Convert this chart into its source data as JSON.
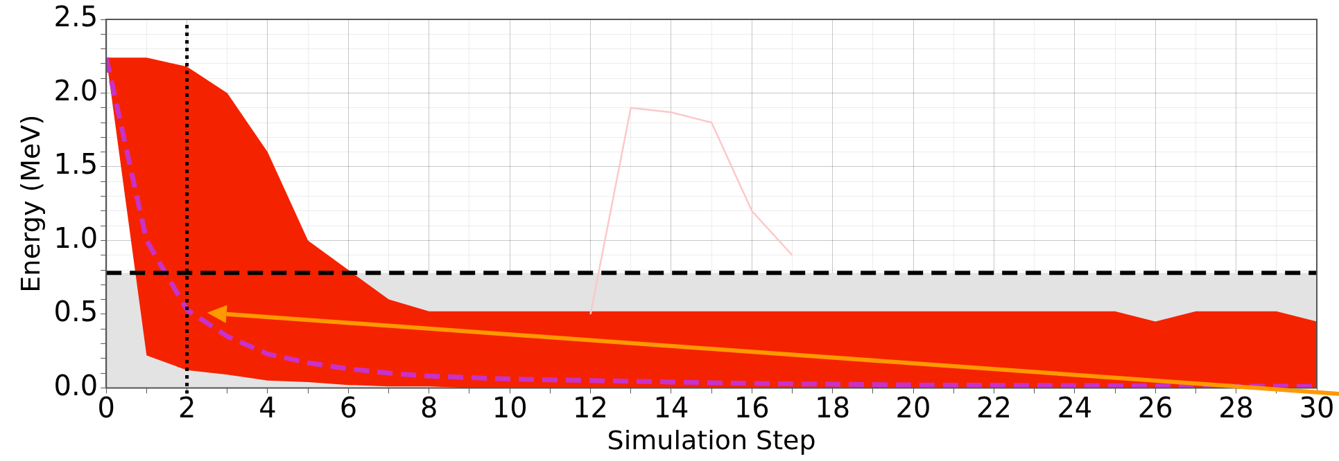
{
  "chart_data": {
    "type": "line",
    "xlabel": "Simulation Step",
    "ylabel": "Energy (MeV)",
    "xlim": [
      0,
      30
    ],
    "ylim": [
      0,
      2.5
    ],
    "xticks": [
      0,
      {
        "value": 1,
        "label": null
      },
      2,
      {
        "value": 3,
        "label": null
      },
      4,
      {
        "value": 5,
        "label": null
      },
      6,
      {
        "value": 7,
        "label": null
      },
      8,
      {
        "value": 9,
        "label": null
      },
      10,
      {
        "value": 11,
        "label": null
      },
      12,
      {
        "value": 13,
        "label": null
      },
      14,
      {
        "value": 15,
        "label": null
      },
      16,
      {
        "value": 17,
        "label": null
      },
      18,
      {
        "value": 19,
        "label": null
      },
      20,
      {
        "value": 21,
        "label": null
      },
      22,
      {
        "value": 23,
        "label": null
      },
      24,
      {
        "value": 25,
        "label": null
      },
      26,
      {
        "value": 27,
        "label": null
      },
      28,
      {
        "value": 29,
        "label": null
      },
      30
    ],
    "yticks": [
      {
        "value": 0,
        "label": "0.0"
      },
      {
        "value": 0.1,
        "label": null
      },
      {
        "value": 0.2,
        "label": null
      },
      {
        "value": 0.3,
        "label": null
      },
      {
        "value": 0.4,
        "label": null
      },
      0.5,
      {
        "value": 0.6,
        "label": null
      },
      {
        "value": 0.7,
        "label": null
      },
      {
        "value": 0.8,
        "label": null
      },
      {
        "value": 0.9,
        "label": null
      },
      {
        "value": 1,
        "label": "1.0"
      },
      {
        "value": 1.1,
        "label": null
      },
      {
        "value": 1.2,
        "label": null
      },
      {
        "value": 1.3,
        "label": null
      },
      {
        "value": 1.4,
        "label": null
      },
      1.5,
      {
        "value": 1.6,
        "label": null
      },
      {
        "value": 1.7,
        "label": null
      },
      {
        "value": 1.8,
        "label": null
      },
      {
        "value": 1.9,
        "label": null
      },
      {
        "value": 2,
        "label": "2.0"
      },
      {
        "value": 2.1,
        "label": null
      },
      {
        "value": 2.2,
        "label": null
      },
      {
        "value": 2.3,
        "label": null
      },
      {
        "value": 2.4,
        "label": null
      },
      2.5
    ],
    "grid": true,
    "legend": false,
    "marker": "none",
    "series": [
      {
        "color": "#fcc8c8",
        "x": [
          12,
          13,
          14,
          15,
          16,
          17
        ],
        "values": [
          0.5,
          1.9,
          1.87,
          1.8,
          1.2,
          0.9
        ]
      },
      {
        "color": "#c832c8",
        "line_style": "dashed",
        "x": [
          0,
          1,
          2,
          3,
          4,
          5,
          6,
          7,
          8,
          9,
          10,
          12,
          14,
          16,
          18,
          20,
          22,
          24,
          25,
          26,
          27,
          28,
          29,
          30
        ],
        "values": [
          2.24,
          1.0,
          0.53,
          0.35,
          0.23,
          0.17,
          0.13,
          0.1,
          0.08,
          0.07,
          0.06,
          0.05,
          0.04,
          0.03,
          0.025,
          0.02,
          0.018,
          0.016,
          0.015,
          0.014,
          0.013,
          0.012,
          0.011,
          0.01
        ],
        "lower": [
          2.24,
          0.22,
          0.12,
          0.09,
          0.05,
          0.04,
          0.02,
          0.01,
          0.01,
          0,
          0,
          0,
          0,
          0,
          0,
          0,
          0,
          0,
          0,
          0,
          0,
          0,
          0,
          0
        ],
        "upper": [
          2.24,
          2.24,
          2.18,
          2.0,
          1.6,
          1.0,
          0.8,
          0.6,
          0.52,
          0.52,
          0.52,
          0.52,
          0.52,
          0.52,
          0.52,
          0.52,
          0.52,
          0.52,
          0.52,
          0.45,
          0.52,
          0.52,
          0.52,
          0.45
        ]
      }
    ],
    "ref_lines": [
      {
        "axis": "y",
        "value": 0.78,
        "color": "#000000",
        "line_style": "dashed"
      },
      {
        "axis": "x",
        "value": 2,
        "color": "#000000",
        "line_style": "dotted"
      }
    ],
    "bands": [
      {
        "axis": "y",
        "from": 0,
        "to": 0.78,
        "color": "#e3e3e3"
      }
    ]
  }
}
